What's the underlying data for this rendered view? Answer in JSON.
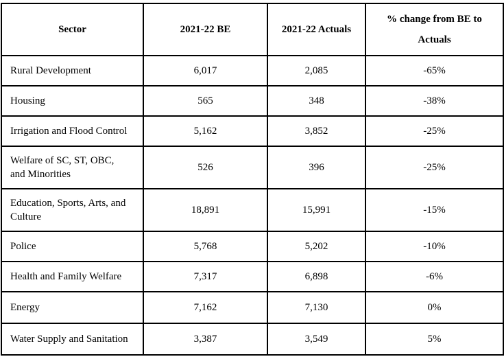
{
  "colors": {
    "text": "#000000",
    "border": "#000000",
    "background": "#ffffff"
  },
  "table": {
    "columns": [
      "Sector",
      "2021-22 BE",
      "2021-22 Actuals",
      "% change from BE to\nActuals"
    ],
    "rows": [
      {
        "sector": "Rural Development",
        "be": "6,017",
        "actuals": "2,085",
        "change": "-65%"
      },
      {
        "sector": "Housing",
        "be": "565",
        "actuals": "348",
        "change": "-38%"
      },
      {
        "sector": "Irrigation and Flood Control",
        "be": "5,162",
        "actuals": "3,852",
        "change": "-25%"
      },
      {
        "sector": "Welfare of SC, ST, OBC,\nand Minorities",
        "be": "526",
        "actuals": "396",
        "change": "-25%"
      },
      {
        "sector": "Education, Sports, Arts, and\nCulture",
        "be": "18,891",
        "actuals": "15,991",
        "change": "-15%"
      },
      {
        "sector": "Police",
        "be": "5,768",
        "actuals": "5,202",
        "change": "-10%"
      },
      {
        "sector": "Health and Family Welfare",
        "be": "7,317",
        "actuals": "6,898",
        "change": "-6%"
      },
      {
        "sector": "Energy",
        "be": "7,162",
        "actuals": "7,130",
        "change": "0%"
      },
      {
        "sector": "Water Supply and Sanitation",
        "be": "3,387",
        "actuals": "3,549",
        "change": "5%"
      }
    ]
  }
}
